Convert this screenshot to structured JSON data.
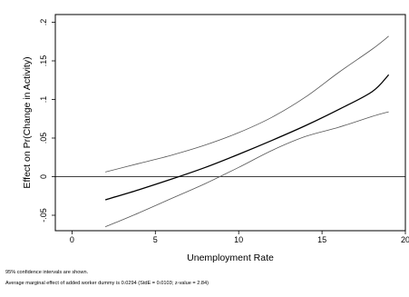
{
  "chart_data": {
    "type": "line",
    "xlabel": "Unemployment Rate",
    "ylabel": "Effect on Pr(Change in Activity)",
    "xlim": [
      -1,
      20
    ],
    "ylim": [
      -0.07,
      0.21
    ],
    "x_ticks": [
      0,
      5,
      10,
      15,
      20
    ],
    "y_ticks": [
      -0.05,
      0,
      0.05,
      0.1,
      0.15,
      0.2
    ],
    "x_tick_labels": [
      "0",
      "5",
      "10",
      "15",
      "20"
    ],
    "y_tick_labels": [
      "-.05",
      "0",
      ".05",
      ".1",
      ".15",
      ".2"
    ],
    "reference_line_y": 0,
    "grid": false,
    "series": [
      {
        "role": "estimate",
        "color": "#000000",
        "x": [
          2,
          4,
          6,
          8,
          10,
          12,
          14,
          16,
          18,
          19
        ],
        "y": [
          -0.03,
          -0.017,
          -0.003,
          0.012,
          0.029,
          0.047,
          0.066,
          0.087,
          0.11,
          0.132
        ]
      },
      {
        "role": "upper_ci",
        "color": "#555555",
        "x": [
          2,
          4,
          6,
          8,
          10,
          12,
          14,
          16,
          18,
          19
        ],
        "y": [
          0.006,
          0.017,
          0.028,
          0.041,
          0.057,
          0.077,
          0.103,
          0.135,
          0.165,
          0.182
        ]
      },
      {
        "role": "lower_ci",
        "color": "#555555",
        "x": [
          2,
          4,
          6,
          8,
          10,
          12,
          14,
          16,
          18,
          19
        ],
        "y": [
          -0.065,
          -0.047,
          -0.028,
          -0.009,
          0.012,
          0.034,
          0.052,
          0.064,
          0.078,
          0.084
        ]
      }
    ]
  },
  "notes": {
    "line1": "95% confidence intervals are shown.",
    "line2": "Average marginal effect of added worker dummy is 0.0294 (StdE = 0.0103; z-value = 2.84)"
  }
}
